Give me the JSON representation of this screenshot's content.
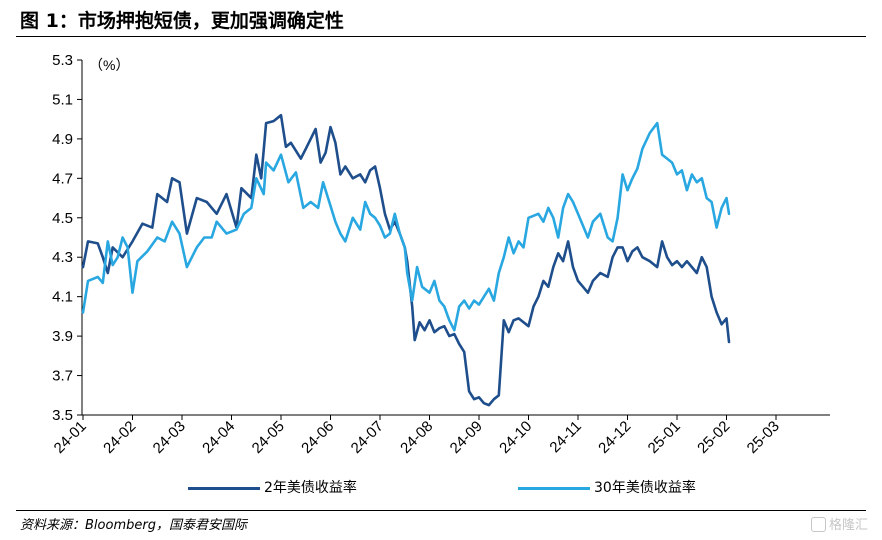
{
  "title": "图 1：市场押抱短债，更加强调确定性",
  "source": "资料来源：Bloomberg，国泰君安国际",
  "watermark": "格隆汇",
  "chart_data": {
    "type": "line",
    "unit_label": "（%）",
    "ylim": [
      3.5,
      5.3
    ],
    "yticks": [
      "3.5",
      "3.7",
      "3.9",
      "4.1",
      "4.3",
      "4.5",
      "4.7",
      "4.9",
      "5.1",
      "5.3"
    ],
    "xticks": [
      "24-01",
      "24-02",
      "24-03",
      "24-04",
      "24-05",
      "24-06",
      "24-07",
      "24-08",
      "24-09",
      "24-10",
      "24-11",
      "24-12",
      "25-01",
      "25-02",
      "25-03"
    ],
    "grid": false,
    "legend_position": "bottom",
    "series": [
      {
        "name": "2年美债收益率",
        "color": "#1f4e8c",
        "points": [
          [
            0.0,
            4.25
          ],
          [
            0.1,
            4.38
          ],
          [
            0.3,
            4.37
          ],
          [
            0.4,
            4.3
          ],
          [
            0.5,
            4.22
          ],
          [
            0.6,
            4.35
          ],
          [
            0.8,
            4.3
          ],
          [
            1.0,
            4.38
          ],
          [
            1.2,
            4.47
          ],
          [
            1.4,
            4.45
          ],
          [
            1.5,
            4.62
          ],
          [
            1.7,
            4.58
          ],
          [
            1.8,
            4.7
          ],
          [
            1.95,
            4.68
          ],
          [
            2.1,
            4.42
          ],
          [
            2.3,
            4.6
          ],
          [
            2.5,
            4.58
          ],
          [
            2.7,
            4.52
          ],
          [
            2.9,
            4.62
          ],
          [
            3.1,
            4.45
          ],
          [
            3.2,
            4.65
          ],
          [
            3.4,
            4.6
          ],
          [
            3.5,
            4.82
          ],
          [
            3.6,
            4.7
          ],
          [
            3.7,
            4.98
          ],
          [
            3.85,
            4.99
          ],
          [
            4.0,
            5.02
          ],
          [
            4.1,
            4.86
          ],
          [
            4.2,
            4.88
          ],
          [
            4.4,
            4.8
          ],
          [
            4.5,
            4.85
          ],
          [
            4.7,
            4.95
          ],
          [
            4.8,
            4.78
          ],
          [
            4.9,
            4.83
          ],
          [
            5.0,
            4.96
          ],
          [
            5.1,
            4.88
          ],
          [
            5.2,
            4.72
          ],
          [
            5.3,
            4.76
          ],
          [
            5.45,
            4.7
          ],
          [
            5.6,
            4.72
          ],
          [
            5.7,
            4.68
          ],
          [
            5.8,
            4.74
          ],
          [
            5.9,
            4.76
          ],
          [
            6.0,
            4.65
          ],
          [
            6.1,
            4.52
          ],
          [
            6.2,
            4.44
          ],
          [
            6.3,
            4.48
          ],
          [
            6.4,
            4.42
          ],
          [
            6.5,
            4.35
          ],
          [
            6.55,
            4.28
          ],
          [
            6.65,
            4.05
          ],
          [
            6.7,
            3.88
          ],
          [
            6.8,
            3.97
          ],
          [
            6.9,
            3.93
          ],
          [
            7.0,
            3.98
          ],
          [
            7.1,
            3.92
          ],
          [
            7.2,
            3.94
          ],
          [
            7.3,
            3.95
          ],
          [
            7.4,
            3.9
          ],
          [
            7.5,
            3.91
          ],
          [
            7.6,
            3.86
          ],
          [
            7.7,
            3.82
          ],
          [
            7.8,
            3.62
          ],
          [
            7.9,
            3.58
          ],
          [
            8.0,
            3.59
          ],
          [
            8.1,
            3.56
          ],
          [
            8.2,
            3.55
          ],
          [
            8.3,
            3.58
          ],
          [
            8.4,
            3.6
          ],
          [
            8.5,
            3.98
          ],
          [
            8.6,
            3.92
          ],
          [
            8.7,
            3.98
          ],
          [
            8.8,
            3.99
          ],
          [
            9.0,
            3.95
          ],
          [
            9.1,
            4.05
          ],
          [
            9.2,
            4.1
          ],
          [
            9.3,
            4.18
          ],
          [
            9.4,
            4.15
          ],
          [
            9.5,
            4.25
          ],
          [
            9.6,
            4.32
          ],
          [
            9.7,
            4.28
          ],
          [
            9.8,
            4.38
          ],
          [
            9.9,
            4.25
          ],
          [
            10.0,
            4.18
          ],
          [
            10.1,
            4.15
          ],
          [
            10.2,
            4.12
          ],
          [
            10.3,
            4.18
          ],
          [
            10.45,
            4.22
          ],
          [
            10.6,
            4.2
          ],
          [
            10.7,
            4.3
          ],
          [
            10.8,
            4.35
          ],
          [
            10.9,
            4.35
          ],
          [
            11.0,
            4.28
          ],
          [
            11.1,
            4.33
          ],
          [
            11.2,
            4.35
          ],
          [
            11.3,
            4.3
          ],
          [
            11.45,
            4.28
          ],
          [
            11.6,
            4.25
          ],
          [
            11.7,
            4.38
          ],
          [
            11.8,
            4.3
          ],
          [
            11.9,
            4.26
          ],
          [
            12.0,
            4.28
          ],
          [
            12.1,
            4.25
          ],
          [
            12.2,
            4.28
          ],
          [
            12.3,
            4.25
          ],
          [
            12.4,
            4.22
          ],
          [
            12.5,
            4.3
          ],
          [
            12.6,
            4.25
          ],
          [
            12.7,
            4.1
          ],
          [
            12.8,
            4.02
          ],
          [
            12.9,
            3.96
          ],
          [
            13.0,
            3.99
          ],
          [
            13.05,
            3.87
          ]
        ]
      },
      {
        "name": "30年美债收益率",
        "color": "#29a7e1",
        "points": [
          [
            0.0,
            4.02
          ],
          [
            0.1,
            4.18
          ],
          [
            0.3,
            4.2
          ],
          [
            0.4,
            4.17
          ],
          [
            0.5,
            4.38
          ],
          [
            0.6,
            4.26
          ],
          [
            0.7,
            4.3
          ],
          [
            0.8,
            4.4
          ],
          [
            0.9,
            4.35
          ],
          [
            1.0,
            4.12
          ],
          [
            1.1,
            4.28
          ],
          [
            1.3,
            4.33
          ],
          [
            1.5,
            4.4
          ],
          [
            1.65,
            4.38
          ],
          [
            1.8,
            4.48
          ],
          [
            1.95,
            4.42
          ],
          [
            2.1,
            4.25
          ],
          [
            2.3,
            4.35
          ],
          [
            2.45,
            4.4
          ],
          [
            2.6,
            4.4
          ],
          [
            2.7,
            4.48
          ],
          [
            2.9,
            4.42
          ],
          [
            3.1,
            4.44
          ],
          [
            3.25,
            4.52
          ],
          [
            3.4,
            4.55
          ],
          [
            3.5,
            4.7
          ],
          [
            3.65,
            4.62
          ],
          [
            3.7,
            4.78
          ],
          [
            3.85,
            4.74
          ],
          [
            4.0,
            4.82
          ],
          [
            4.15,
            4.68
          ],
          [
            4.3,
            4.73
          ],
          [
            4.45,
            4.55
          ],
          [
            4.6,
            4.58
          ],
          [
            4.75,
            4.55
          ],
          [
            4.85,
            4.68
          ],
          [
            5.0,
            4.56
          ],
          [
            5.1,
            4.48
          ],
          [
            5.2,
            4.42
          ],
          [
            5.3,
            4.38
          ],
          [
            5.45,
            4.5
          ],
          [
            5.6,
            4.44
          ],
          [
            5.7,
            4.58
          ],
          [
            5.8,
            4.52
          ],
          [
            5.9,
            4.5
          ],
          [
            6.0,
            4.46
          ],
          [
            6.1,
            4.4
          ],
          [
            6.2,
            4.42
          ],
          [
            6.3,
            4.52
          ],
          [
            6.4,
            4.42
          ],
          [
            6.5,
            4.35
          ],
          [
            6.55,
            4.22
          ],
          [
            6.65,
            4.08
          ],
          [
            6.75,
            4.25
          ],
          [
            6.85,
            4.15
          ],
          [
            7.0,
            4.12
          ],
          [
            7.1,
            4.18
          ],
          [
            7.2,
            4.08
          ],
          [
            7.3,
            4.05
          ],
          [
            7.4,
            3.98
          ],
          [
            7.5,
            3.93
          ],
          [
            7.6,
            4.05
          ],
          [
            7.7,
            4.08
          ],
          [
            7.8,
            4.04
          ],
          [
            7.9,
            4.08
          ],
          [
            8.0,
            4.06
          ],
          [
            8.1,
            4.1
          ],
          [
            8.2,
            4.14
          ],
          [
            8.3,
            4.08
          ],
          [
            8.4,
            4.22
          ],
          [
            8.5,
            4.3
          ],
          [
            8.6,
            4.4
          ],
          [
            8.7,
            4.32
          ],
          [
            8.8,
            4.38
          ],
          [
            8.9,
            4.35
          ],
          [
            9.0,
            4.5
          ],
          [
            9.2,
            4.52
          ],
          [
            9.3,
            4.48
          ],
          [
            9.4,
            4.55
          ],
          [
            9.5,
            4.5
          ],
          [
            9.6,
            4.4
          ],
          [
            9.7,
            4.55
          ],
          [
            9.8,
            4.62
          ],
          [
            9.9,
            4.58
          ],
          [
            10.0,
            4.52
          ],
          [
            10.2,
            4.4
          ],
          [
            10.3,
            4.48
          ],
          [
            10.45,
            4.52
          ],
          [
            10.6,
            4.4
          ],
          [
            10.7,
            4.38
          ],
          [
            10.8,
            4.5
          ],
          [
            10.9,
            4.72
          ],
          [
            11.0,
            4.64
          ],
          [
            11.1,
            4.7
          ],
          [
            11.2,
            4.75
          ],
          [
            11.3,
            4.85
          ],
          [
            11.45,
            4.93
          ],
          [
            11.6,
            4.98
          ],
          [
            11.7,
            4.82
          ],
          [
            11.8,
            4.8
          ],
          [
            11.9,
            4.78
          ],
          [
            12.0,
            4.72
          ],
          [
            12.1,
            4.74
          ],
          [
            12.2,
            4.64
          ],
          [
            12.3,
            4.72
          ],
          [
            12.4,
            4.68
          ],
          [
            12.5,
            4.7
          ],
          [
            12.6,
            4.6
          ],
          [
            12.7,
            4.58
          ],
          [
            12.8,
            4.45
          ],
          [
            12.9,
            4.55
          ],
          [
            13.0,
            4.6
          ],
          [
            13.05,
            4.52
          ]
        ]
      }
    ]
  }
}
